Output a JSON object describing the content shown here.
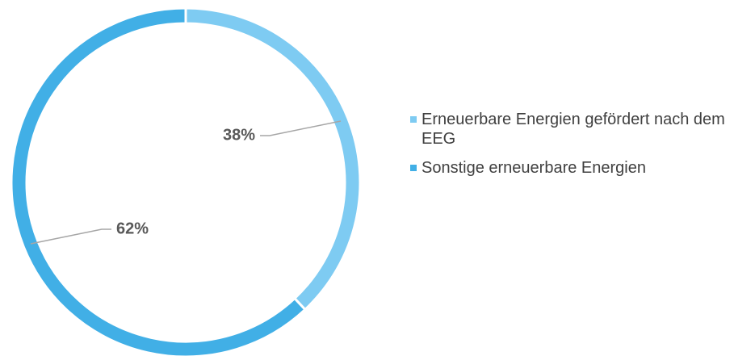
{
  "chart_data": {
    "type": "donut",
    "categories": [
      "Erneuerbare Energien gefördert nach dem EEG",
      "Sonstige erneuerbare Energien"
    ],
    "values": [
      38,
      62
    ],
    "value_labels": [
      "38%",
      "62%"
    ],
    "colors": [
      "#7ecbf2",
      "#41afe6"
    ],
    "legend": "right"
  }
}
